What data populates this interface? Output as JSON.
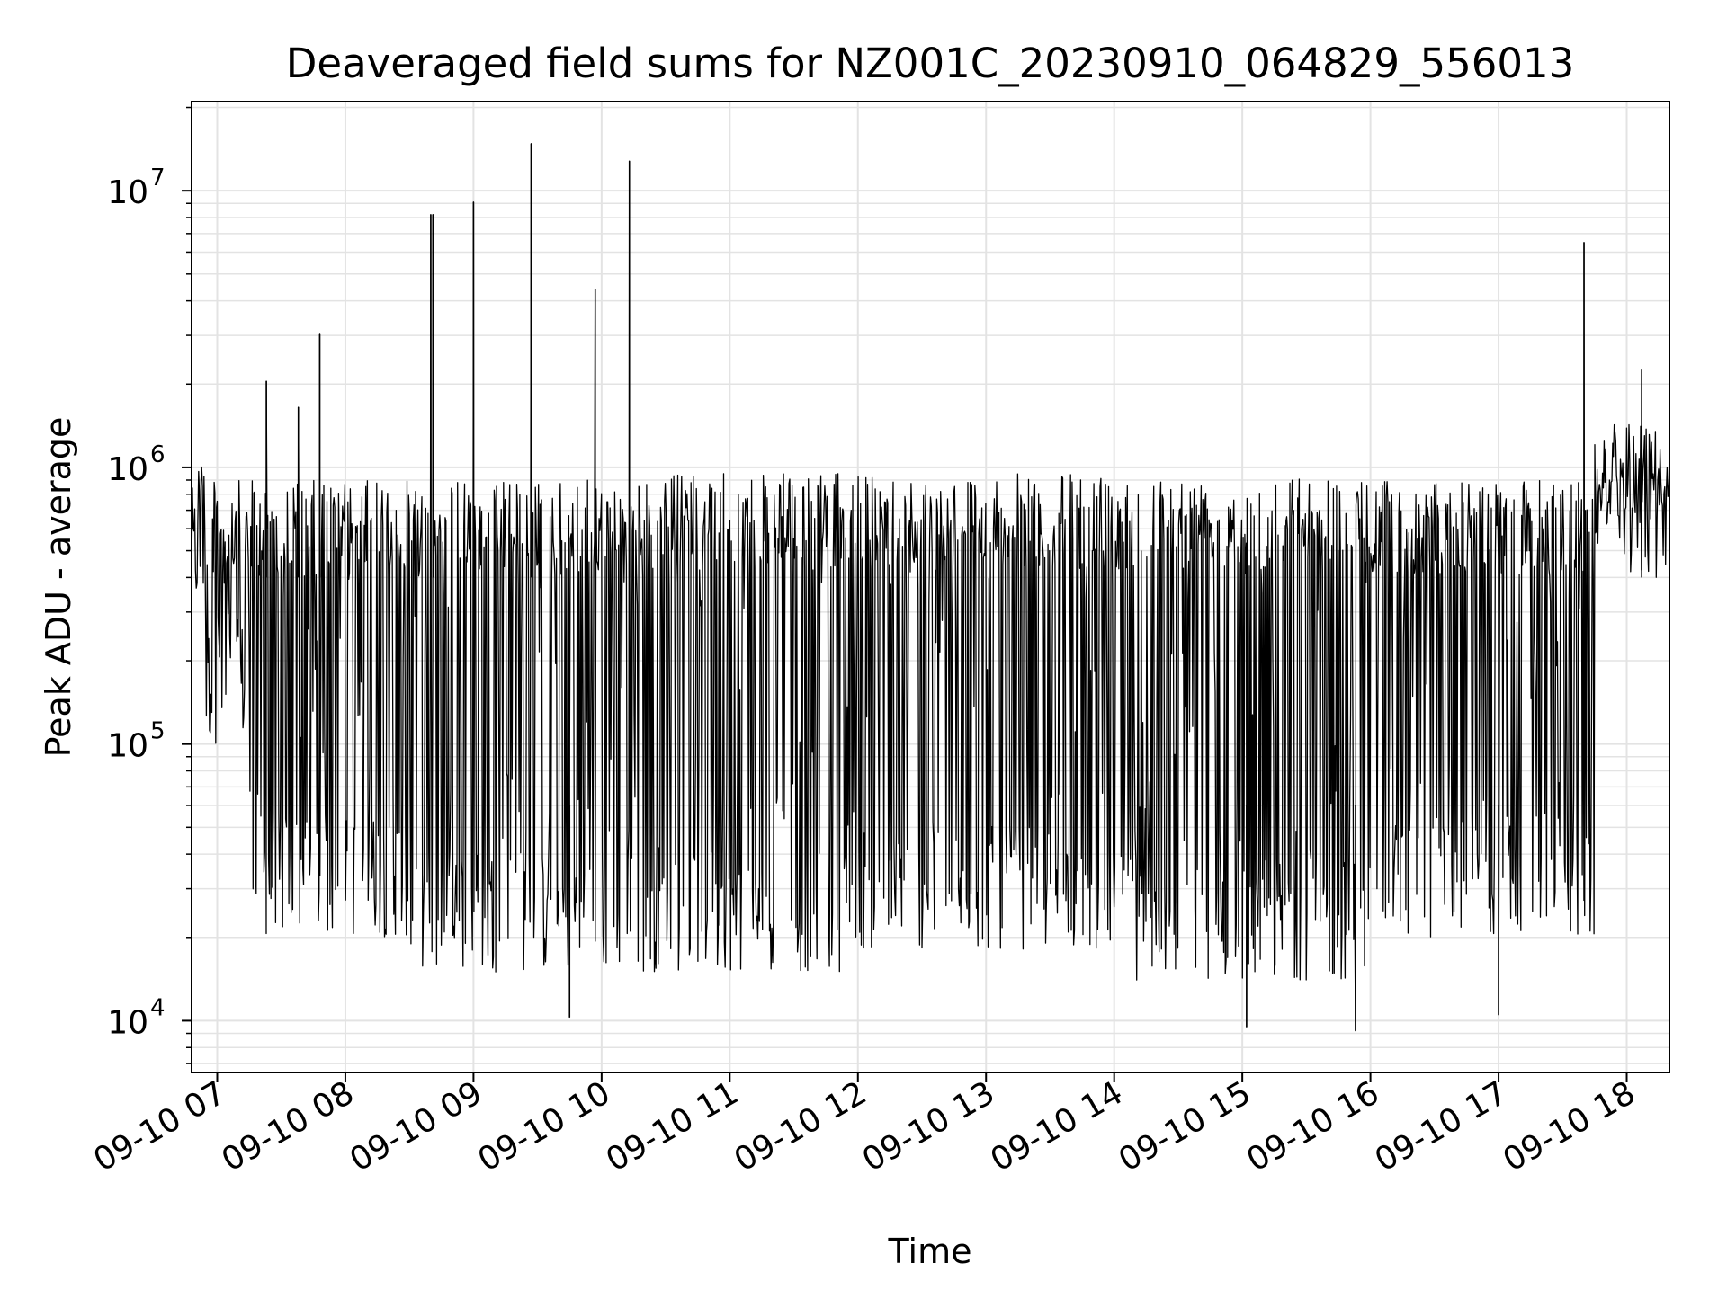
{
  "chart_data": {
    "type": "line",
    "title": "Deaveraged field sums for NZ001C_20230910_064829_556013",
    "xlabel": "Time",
    "ylabel": "Peak ADU - average",
    "yscale": "log",
    "ylim": [
      6500,
      21000000
    ],
    "xlim": [
      "2023-09-10 06:48",
      "2023-09-10 18:20"
    ],
    "grid": true,
    "line_color": "#000000",
    "grid_color": "#e3e3e3",
    "x_ticks": [
      {
        "t": "2023-09-10 07:00",
        "label": "09-10 07"
      },
      {
        "t": "2023-09-10 08:00",
        "label": "09-10 08"
      },
      {
        "t": "2023-09-10 09:00",
        "label": "09-10 09"
      },
      {
        "t": "2023-09-10 10:00",
        "label": "09-10 10"
      },
      {
        "t": "2023-09-10 11:00",
        "label": "09-10 11"
      },
      {
        "t": "2023-09-10 12:00",
        "label": "09-10 12"
      },
      {
        "t": "2023-09-10 13:00",
        "label": "09-10 13"
      },
      {
        "t": "2023-09-10 14:00",
        "label": "09-10 14"
      },
      {
        "t": "2023-09-10 15:00",
        "label": "09-10 15"
      },
      {
        "t": "2023-09-10 16:00",
        "label": "09-10 16"
      },
      {
        "t": "2023-09-10 17:00",
        "label": "09-10 17"
      },
      {
        "t": "2023-09-10 18:00",
        "label": "09-10 18"
      }
    ],
    "y_ticks": [
      {
        "value": 10000,
        "base": "10",
        "exp": "4"
      },
      {
        "value": 100000,
        "base": "10",
        "exp": "5"
      },
      {
        "value": 1000000,
        "base": "10",
        "exp": "6"
      },
      {
        "value": 10000000,
        "base": "10",
        "exp": "7"
      }
    ],
    "segments": [
      {
        "start": "2023-09-10 06:48",
        "end": "2023-09-10 06:54",
        "high": 1200000,
        "low": 300000
      },
      {
        "start": "2023-09-10 06:54",
        "end": "2023-09-10 07:15",
        "high": 900000,
        "low": 100000
      },
      {
        "start": "2023-09-10 07:15",
        "end": "2023-09-10 08:30",
        "high": 900000,
        "low": 20000
      },
      {
        "start": "2023-09-10 08:30",
        "end": "2023-09-10 10:30",
        "high": 900000,
        "low": 15000
      },
      {
        "start": "2023-09-10 10:30",
        "end": "2023-09-10 12:00",
        "high": 950000,
        "low": 15000
      },
      {
        "start": "2023-09-10 12:00",
        "end": "2023-09-10 14:00",
        "high": 950000,
        "low": 18000
      },
      {
        "start": "2023-09-10 14:00",
        "end": "2023-09-10 16:00",
        "high": 950000,
        "low": 14000
      },
      {
        "start": "2023-09-10 16:00",
        "end": "2023-09-10 17:45",
        "high": 900000,
        "low": 20000
      },
      {
        "start": "2023-09-10 17:45",
        "end": "2023-09-10 18:20",
        "high": 1500000,
        "low": 400000
      }
    ],
    "spikes": [
      {
        "t": "2023-09-10 07:23",
        "value": 2050000
      },
      {
        "t": "2023-09-10 07:38",
        "value": 1650000
      },
      {
        "t": "2023-09-10 07:48",
        "value": 3050000
      },
      {
        "t": "2023-09-10 08:40",
        "value": 8200000
      },
      {
        "t": "2023-09-10 08:41",
        "value": 8200000
      },
      {
        "t": "2023-09-10 09:00",
        "value": 9100000
      },
      {
        "t": "2023-09-10 09:27",
        "value": 14800000
      },
      {
        "t": "2023-09-10 09:57",
        "value": 4400000
      },
      {
        "t": "2023-09-10 10:13",
        "value": 12800000
      },
      {
        "t": "2023-09-10 17:40",
        "value": 6500000
      },
      {
        "t": "2023-09-10 18:07",
        "value": 2250000
      }
    ],
    "dips": [
      {
        "t": "2023-09-10 09:45",
        "value": 10300
      },
      {
        "t": "2023-09-10 15:02",
        "value": 9500
      },
      {
        "t": "2023-09-10 15:53",
        "value": 9200
      },
      {
        "t": "2023-09-10 17:00",
        "value": 10500
      }
    ]
  }
}
